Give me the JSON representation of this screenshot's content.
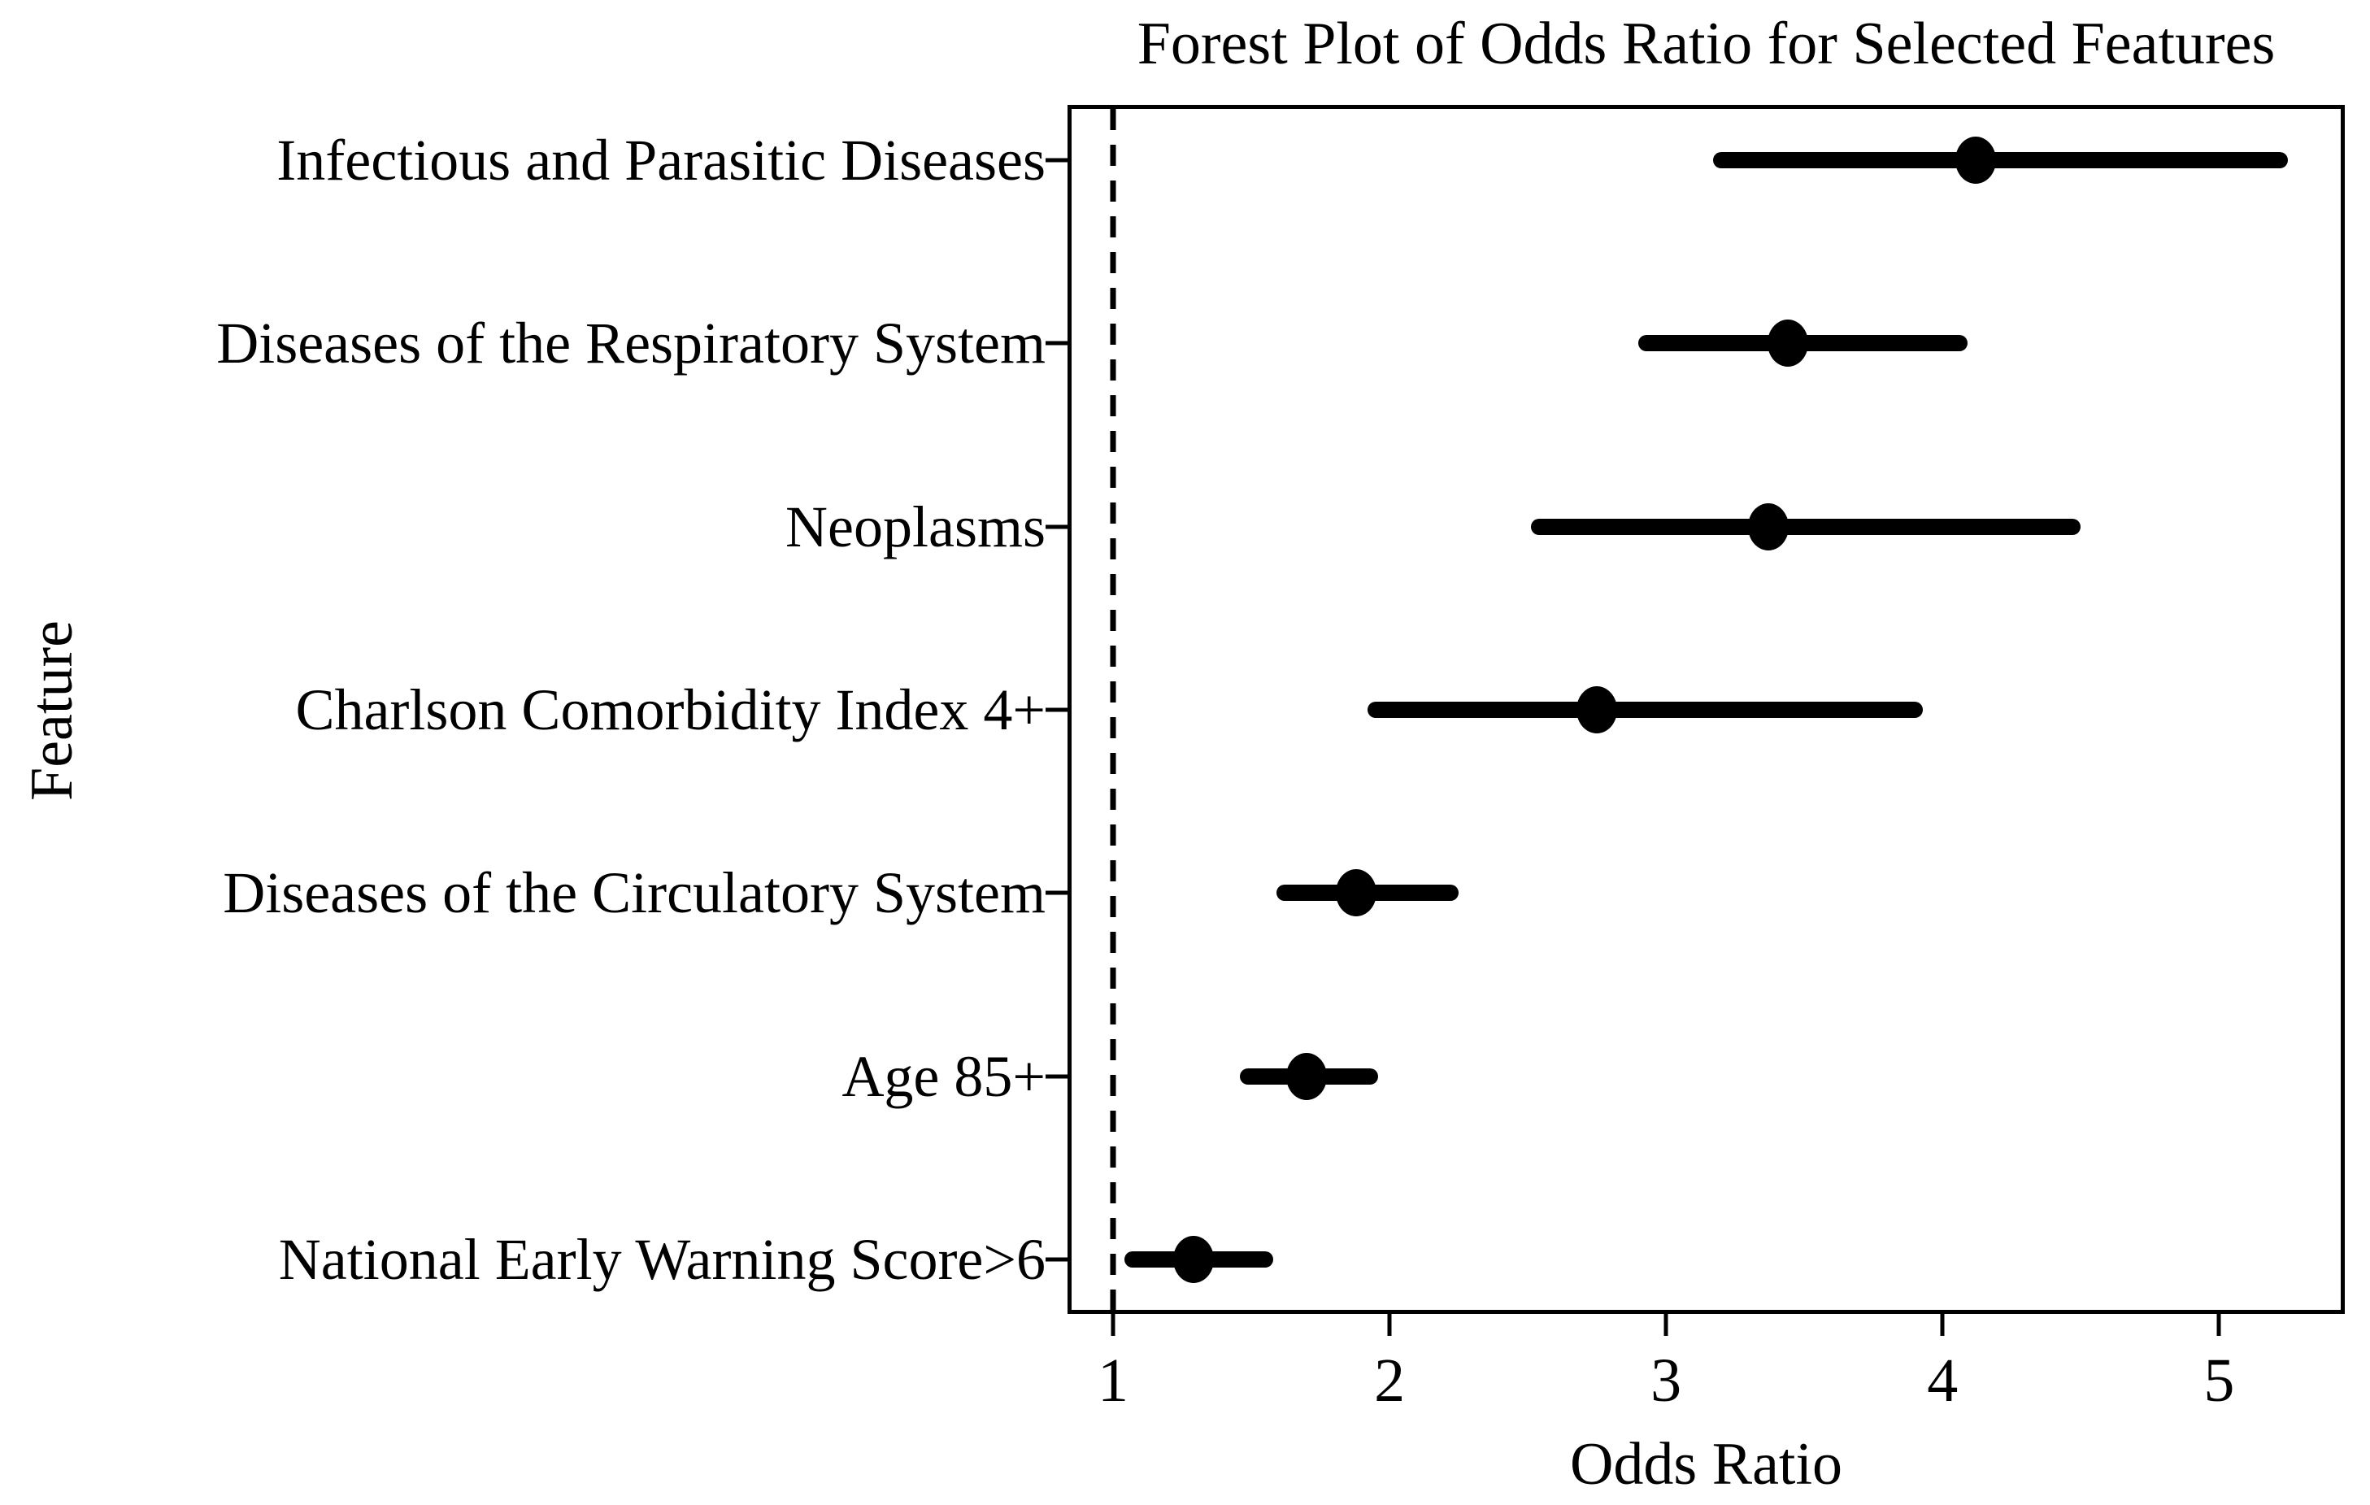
{
  "chart_data": {
    "type": "scatter",
    "variant": "forest-plot",
    "title": "Forest Plot of Odds Ratio for Selected Features",
    "xlabel": "Odds Ratio",
    "ylabel": "Feature",
    "xlim": [
      0.85,
      5.44
    ],
    "x_ticks": [
      1,
      2,
      3,
      4,
      5
    ],
    "reference_line": {
      "x": 1,
      "style": "dashed"
    },
    "grid": false,
    "legend": false,
    "categories": [
      "Infectious and Parasitic Diseases",
      "Diseases of the Respiratory System",
      "Neoplasms",
      "Charlson Comorbidity Index 4+",
      "Diseases of the Circulatory System",
      "Age 85+",
      "National Early Warning Score>6"
    ],
    "points": [
      {
        "label": "Infectious and Parasitic Diseases",
        "odds_ratio": 4.12,
        "ci_low": 3.17,
        "ci_high": 5.25
      },
      {
        "label": "Diseases of the Respiratory System",
        "odds_ratio": 3.44,
        "ci_low": 2.9,
        "ci_high": 4.09
      },
      {
        "label": "Neoplasms",
        "odds_ratio": 3.37,
        "ci_low": 2.51,
        "ci_high": 4.5
      },
      {
        "label": "Charlson Comorbidity Index 4+",
        "odds_ratio": 2.75,
        "ci_low": 1.92,
        "ci_high": 3.93
      },
      {
        "label": "Diseases of the Circulatory System",
        "odds_ratio": 1.88,
        "ci_low": 1.59,
        "ci_high": 2.25
      },
      {
        "label": "Age 85+",
        "odds_ratio": 1.7,
        "ci_low": 1.46,
        "ci_high": 1.96
      },
      {
        "label": "National Early Warning Score>6",
        "odds_ratio": 1.29,
        "ci_low": 1.04,
        "ci_high": 1.58
      }
    ],
    "style": {
      "marker_color": "#000000",
      "ci_line_color": "#000000",
      "axis_color": "#000000",
      "reference_line_color": "#000000",
      "background": "#ffffff",
      "text_color": "#000000"
    }
  }
}
